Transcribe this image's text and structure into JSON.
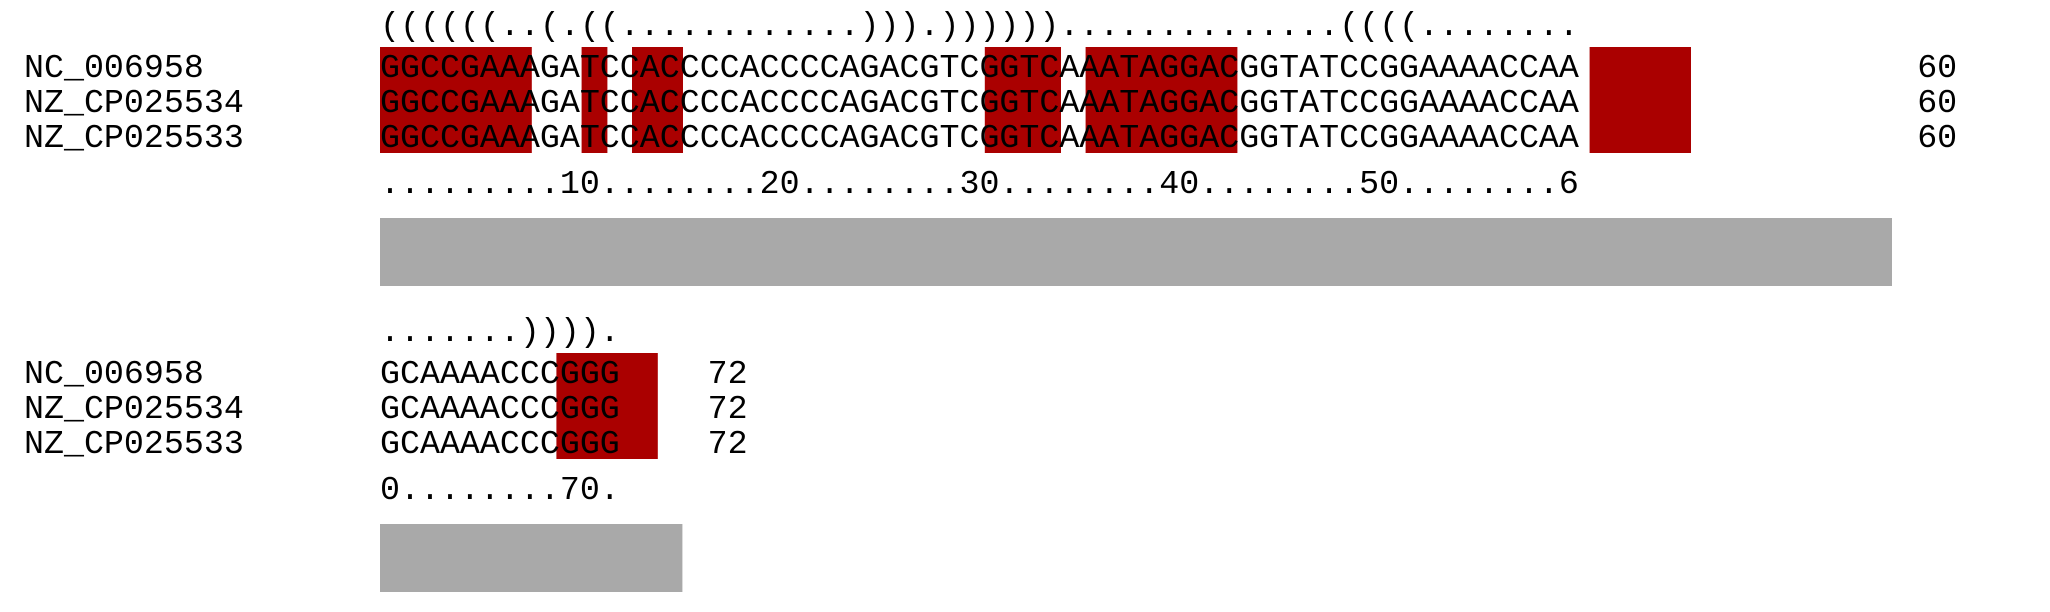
{
  "colors": {
    "highlight": "#aa0000",
    "conservation_bar": "#a9a9a9",
    "text": "#000000",
    "background": "#ffffff"
  },
  "blocks": [
    {
      "structure": "((((((..(.((............))).))))))..............((((........",
      "ruler": ".........10........20........30........40........50........6",
      "sequences": [
        {
          "name": "NC_006958",
          "seq": "GGCCGAAAGATCCACCCCACCCCAGACGTCGGTCAAATAGGACGGTATCCGGAAAACCAA",
          "end": "60"
        },
        {
          "name": "NZ_CP025534",
          "seq": "GGCCGAAAGATCCACCCCACCCCAGACGTCGGTCAAATAGGACGGTATCCGGAAAACCAA",
          "end": "60"
        },
        {
          "name": "NZ_CP025533",
          "seq": "GGCCGAAAGATCCACCCCACCCCAGACGTCGGTCAAATAGGACGGTATCCGGAAAACCAA",
          "end": "60"
        }
      ],
      "highlight_positions": [
        0,
        1,
        2,
        3,
        4,
        5,
        8,
        10,
        11,
        24,
        25,
        26,
        28,
        29,
        30,
        31,
        32,
        33,
        48,
        49,
        50,
        51
      ],
      "conservation_bar_length": 60
    },
    {
      "structure": ".......)))).",
      "ruler": "0........70.",
      "sequences": [
        {
          "name": "NC_006958",
          "seq": "GCAAAACCCGGG",
          "end": "72"
        },
        {
          "name": "NZ_CP025534",
          "seq": "GCAAAACCCGGG",
          "end": "72"
        },
        {
          "name": "NZ_CP025533",
          "seq": "GCAAAACCCGGG",
          "end": "72"
        }
      ],
      "highlight_positions": [
        7,
        8,
        9,
        10
      ],
      "conservation_bar_length": 12
    }
  ]
}
